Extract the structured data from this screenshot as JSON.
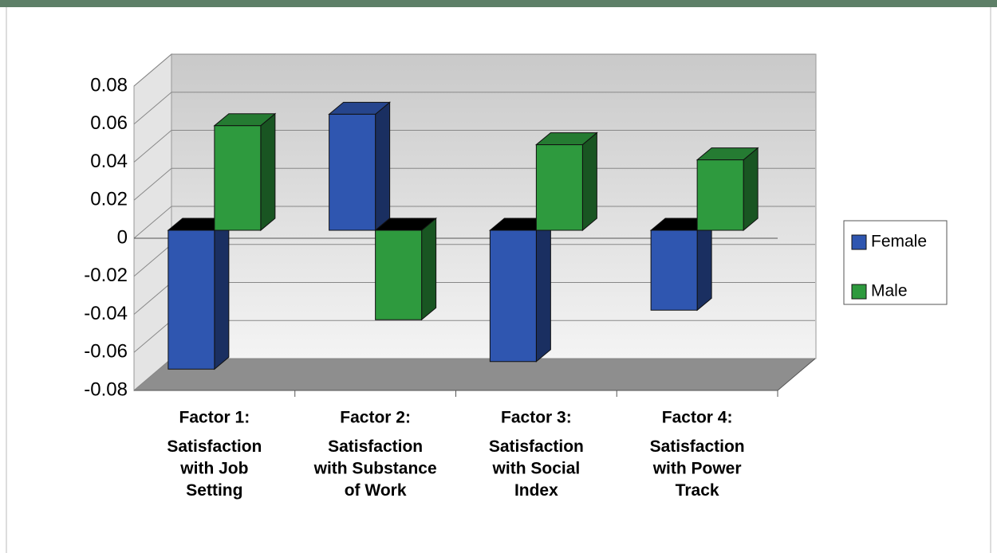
{
  "chart_data": {
    "type": "bar3d",
    "categories": [
      [
        "Factor 1:",
        "Satisfaction",
        "with Job",
        "Setting"
      ],
      [
        "Factor 2:",
        "Satisfaction",
        "with Substance",
        "of Work"
      ],
      [
        "Factor 3:",
        "Satisfaction",
        "with Social",
        "Index"
      ],
      [
        "Factor 4:",
        "Satisfaction",
        "with Power",
        "Track"
      ]
    ],
    "series": [
      {
        "name": "Female",
        "color": "#2f56b0",
        "values": [
          -0.073,
          0.061,
          -0.069,
          -0.042
        ]
      },
      {
        "name": "Male",
        "color": "#2e9a3e",
        "values": [
          0.055,
          -0.047,
          0.045,
          0.037
        ]
      }
    ],
    "ylim": [
      -0.08,
      0.08
    ],
    "yticks": [
      0.08,
      0.06,
      0.04,
      0.02,
      0,
      -0.02,
      -0.04,
      -0.06,
      -0.08
    ],
    "grid": true,
    "legend": "right"
  }
}
